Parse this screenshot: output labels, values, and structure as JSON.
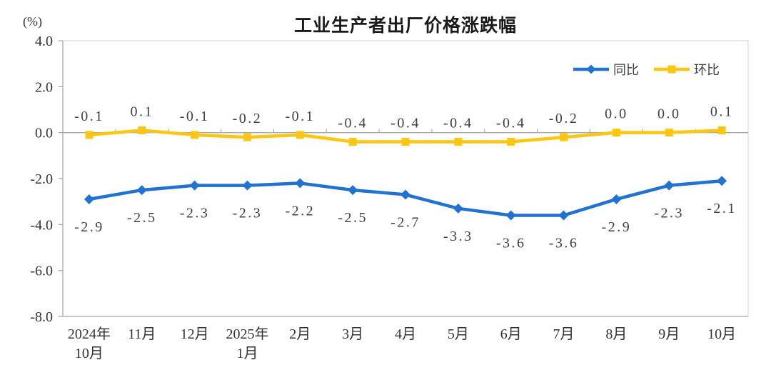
{
  "title": "工业生产者出厂价格涨跌幅",
  "unit_label": "(%)",
  "chart_data": {
    "type": "line",
    "title": "工业生产者出厂价格涨跌幅",
    "unit": "%",
    "categories": [
      [
        "2024年",
        "10月"
      ],
      [
        "11月"
      ],
      [
        "12月"
      ],
      [
        "2025年",
        "1月"
      ],
      [
        "2月"
      ],
      [
        "3月"
      ],
      [
        "4月"
      ],
      [
        "5月"
      ],
      [
        "6月"
      ],
      [
        "7月"
      ],
      [
        "8月"
      ],
      [
        "9月"
      ],
      [
        "10月"
      ]
    ],
    "series": [
      {
        "name": "同比",
        "color": "#2272D2",
        "marker": "diamond",
        "label_position": "below",
        "values": [
          -2.9,
          -2.5,
          -2.3,
          -2.3,
          -2.2,
          -2.5,
          -2.7,
          -3.3,
          -3.6,
          -3.6,
          -2.9,
          -2.3,
          -2.1
        ]
      },
      {
        "name": "环比",
        "color": "#FDC613",
        "marker": "square",
        "label_position": "above",
        "values": [
          -0.1,
          0.1,
          -0.1,
          -0.2,
          -0.1,
          -0.4,
          -0.4,
          -0.4,
          -0.4,
          -0.2,
          0.0,
          0.0,
          0.1
        ]
      }
    ],
    "ylim": [
      -8.0,
      4.0
    ],
    "yticks": [
      4.0,
      2.0,
      0.0,
      -2.0,
      -4.0,
      -6.0,
      -8.0
    ],
    "legend_position": "top-right",
    "grid": false,
    "axis_color": "#A9A9A9",
    "border_color": "#D9D9D9",
    "label_color": "#404040"
  }
}
